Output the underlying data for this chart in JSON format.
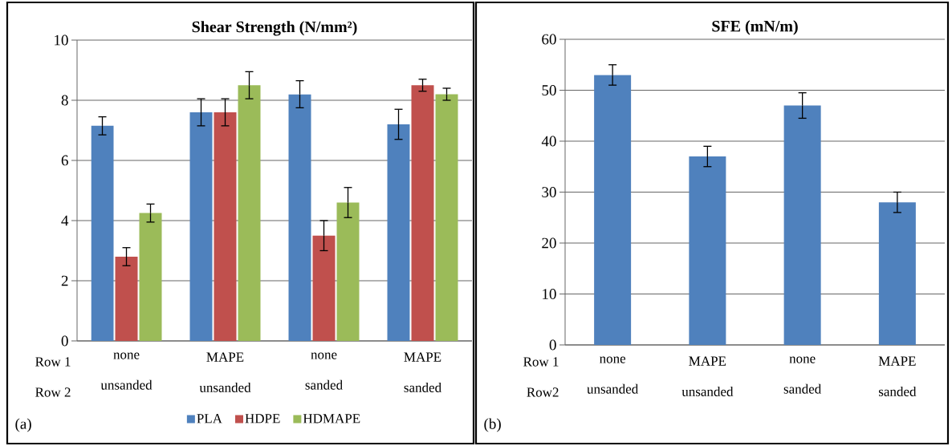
{
  "chart_data": [
    {
      "type": "bar",
      "title": "Shear Strength (N/mm²)",
      "categories": [
        "none unsanded",
        "MAPE unsanded",
        "none sanded",
        "MAPE sanded"
      ],
      "series": [
        {
          "name": "PLA",
          "color": "#4f81bd",
          "values": [
            7.15,
            7.6,
            8.2,
            7.2
          ],
          "errors": [
            0.3,
            0.45,
            0.45,
            0.5
          ]
        },
        {
          "name": "HDPE",
          "color": "#c0504d",
          "values": [
            2.8,
            7.6,
            3.5,
            8.5
          ],
          "errors": [
            0.3,
            0.45,
            0.5,
            0.2
          ]
        },
        {
          "name": "HDMAPE",
          "color": "#9bbb59",
          "values": [
            4.25,
            8.5,
            4.6,
            8.2
          ],
          "errors": [
            0.3,
            0.45,
            0.5,
            0.2
          ]
        }
      ],
      "ylim": [
        0,
        10
      ],
      "yticks": [
        0,
        2,
        4,
        6,
        8,
        10
      ],
      "grid": "y",
      "legend": "bottom",
      "annotations": [
        "Row 1",
        "Row 2",
        "(a)"
      ]
    },
    {
      "type": "bar",
      "title": "SFE (mN/m)",
      "categories": [
        "none unsanded",
        "MAPE unsanded",
        "none sanded",
        "MAPE sanded"
      ],
      "values": [
        53,
        37,
        47,
        28
      ],
      "errors": [
        2,
        2,
        2.5,
        2
      ],
      "color": "#4f81bd",
      "ylim": [
        0,
        60
      ],
      "yticks": [
        0,
        10,
        20,
        30,
        40,
        50,
        60
      ],
      "grid": "y",
      "annotations": [
        "Row 1",
        "Row2",
        "(b)"
      ]
    }
  ]
}
